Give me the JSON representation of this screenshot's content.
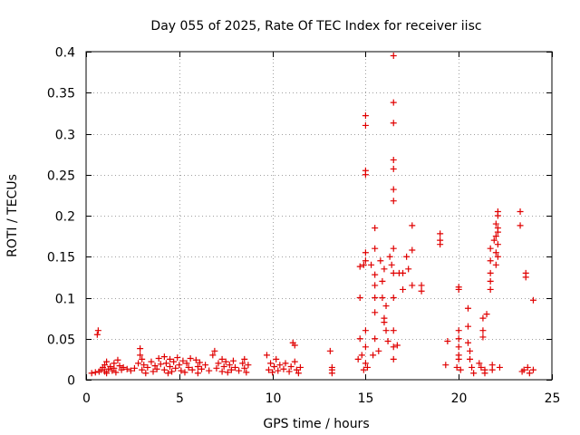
{
  "chart_data": {
    "type": "scatter",
    "title": "Day 055 of 2025, Rate Of TEC Index for receiver iisc",
    "xlabel": "GPS time / hours",
    "ylabel": "ROTI / TECUs",
    "xlim": [
      0,
      25
    ],
    "ylim": [
      0,
      0.4
    ],
    "xticks": [
      0,
      5,
      10,
      15,
      20,
      25
    ],
    "xtick_labels": [
      "0",
      "5",
      "10",
      "15",
      "20",
      "25"
    ],
    "yticks": [
      0,
      0.05,
      0.1,
      0.15,
      0.2,
      0.25,
      0.3,
      0.35,
      0.4
    ],
    "ytick_labels": [
      "0",
      "0.05",
      "0.1",
      "0.15",
      "0.2",
      "0.25",
      "0.3",
      "0.35",
      "0.4"
    ],
    "grid": true,
    "marker": "+",
    "color": "#e00000",
    "series": [
      {
        "name": "ROTI",
        "points": [
          [
            0.3,
            0.008
          ],
          [
            0.5,
            0.009
          ],
          [
            0.6,
            0.055
          ],
          [
            0.65,
            0.06
          ],
          [
            0.7,
            0.01
          ],
          [
            0.8,
            0.012
          ],
          [
            0.9,
            0.015
          ],
          [
            1.0,
            0.01
          ],
          [
            1.0,
            0.018
          ],
          [
            1.1,
            0.022
          ],
          [
            1.1,
            0.008
          ],
          [
            1.2,
            0.013
          ],
          [
            1.3,
            0.016
          ],
          [
            1.4,
            0.011
          ],
          [
            1.5,
            0.02
          ],
          [
            1.5,
            0.014
          ],
          [
            1.6,
            0.009
          ],
          [
            1.7,
            0.024
          ],
          [
            1.8,
            0.017
          ],
          [
            1.9,
            0.012
          ],
          [
            2.0,
            0.015
          ],
          [
            2.2,
            0.013
          ],
          [
            2.4,
            0.011
          ],
          [
            2.6,
            0.014
          ],
          [
            2.8,
            0.02
          ],
          [
            2.9,
            0.03
          ],
          [
            2.9,
            0.038
          ],
          [
            3.0,
            0.025
          ],
          [
            3.0,
            0.012
          ],
          [
            3.1,
            0.018
          ],
          [
            3.2,
            0.008
          ],
          [
            3.3,
            0.015
          ],
          [
            3.5,
            0.022
          ],
          [
            3.6,
            0.01
          ],
          [
            3.7,
            0.017
          ],
          [
            3.8,
            0.013
          ],
          [
            3.9,
            0.026
          ],
          [
            4.0,
            0.019
          ],
          [
            4.2,
            0.028
          ],
          [
            4.2,
            0.012
          ],
          [
            4.3,
            0.02
          ],
          [
            4.4,
            0.008
          ],
          [
            4.5,
            0.016
          ],
          [
            4.5,
            0.025
          ],
          [
            4.6,
            0.01
          ],
          [
            4.7,
            0.022
          ],
          [
            4.8,
            0.014
          ],
          [
            4.9,
            0.027
          ],
          [
            5.0,
            0.018
          ],
          [
            5.1,
            0.011
          ],
          [
            5.2,
            0.023
          ],
          [
            5.3,
            0.009
          ],
          [
            5.4,
            0.02
          ],
          [
            5.5,
            0.015
          ],
          [
            5.6,
            0.026
          ],
          [
            5.7,
            0.012
          ],
          [
            5.9,
            0.024
          ],
          [
            6.0,
            0.016
          ],
          [
            6.0,
            0.008
          ],
          [
            6.1,
            0.021
          ],
          [
            6.2,
            0.013
          ],
          [
            6.4,
            0.018
          ],
          [
            6.6,
            0.011
          ],
          [
            6.8,
            0.03
          ],
          [
            6.9,
            0.035
          ],
          [
            7.0,
            0.014
          ],
          [
            7.1,
            0.02
          ],
          [
            7.3,
            0.01
          ],
          [
            7.3,
            0.025
          ],
          [
            7.4,
            0.016
          ],
          [
            7.5,
            0.022
          ],
          [
            7.6,
            0.009
          ],
          [
            7.7,
            0.018
          ],
          [
            7.8,
            0.012
          ],
          [
            7.9,
            0.023
          ],
          [
            8.0,
            0.015
          ],
          [
            8.2,
            0.011
          ],
          [
            8.4,
            0.02
          ],
          [
            8.5,
            0.014
          ],
          [
            8.5,
            0.025
          ],
          [
            8.6,
            0.009
          ],
          [
            8.7,
            0.018
          ],
          [
            9.7,
            0.03
          ],
          [
            9.8,
            0.012
          ],
          [
            9.9,
            0.02
          ],
          [
            10.0,
            0.009
          ],
          [
            10.1,
            0.016
          ],
          [
            10.2,
            0.025
          ],
          [
            10.3,
            0.011
          ],
          [
            10.4,
            0.018
          ],
          [
            10.6,
            0.013
          ],
          [
            10.7,
            0.02
          ],
          [
            10.9,
            0.01
          ],
          [
            11.0,
            0.016
          ],
          [
            11.1,
            0.045
          ],
          [
            11.2,
            0.042
          ],
          [
            11.2,
            0.022
          ],
          [
            11.3,
            0.012
          ],
          [
            11.4,
            0.008
          ],
          [
            11.5,
            0.015
          ],
          [
            13.1,
            0.035
          ],
          [
            13.2,
            0.015
          ],
          [
            13.2,
            0.008
          ],
          [
            13.2,
            0.012
          ],
          [
            14.6,
            0.025
          ],
          [
            14.7,
            0.138
          ],
          [
            14.7,
            0.1
          ],
          [
            14.7,
            0.05
          ],
          [
            14.8,
            0.03
          ],
          [
            14.9,
            0.012
          ],
          [
            14.9,
            0.14
          ],
          [
            15.0,
            0.25
          ],
          [
            15.0,
            0.255
          ],
          [
            15.0,
            0.31
          ],
          [
            15.0,
            0.322
          ],
          [
            15.0,
            0.145
          ],
          [
            15.0,
            0.155
          ],
          [
            15.0,
            0.06
          ],
          [
            15.0,
            0.04
          ],
          [
            15.0,
            0.02
          ],
          [
            15.1,
            0.015
          ],
          [
            15.3,
            0.14
          ],
          [
            15.4,
            0.03
          ],
          [
            15.5,
            0.185
          ],
          [
            15.5,
            0.16
          ],
          [
            15.5,
            0.128
          ],
          [
            15.5,
            0.115
          ],
          [
            15.5,
            0.1
          ],
          [
            15.5,
            0.082
          ],
          [
            15.5,
            0.05
          ],
          [
            15.7,
            0.035
          ],
          [
            15.8,
            0.145
          ],
          [
            15.9,
            0.12
          ],
          [
            15.9,
            0.1
          ],
          [
            16.0,
            0.135
          ],
          [
            16.0,
            0.075
          ],
          [
            16.0,
            0.07
          ],
          [
            16.1,
            0.09
          ],
          [
            16.1,
            0.06
          ],
          [
            16.2,
            0.047
          ],
          [
            16.3,
            0.15
          ],
          [
            16.4,
            0.14
          ],
          [
            16.5,
            0.395
          ],
          [
            16.5,
            0.338
          ],
          [
            16.5,
            0.313
          ],
          [
            16.5,
            0.268
          ],
          [
            16.5,
            0.257
          ],
          [
            16.5,
            0.232
          ],
          [
            16.5,
            0.218
          ],
          [
            16.5,
            0.16
          ],
          [
            16.5,
            0.13
          ],
          [
            16.5,
            0.1
          ],
          [
            16.5,
            0.06
          ],
          [
            16.5,
            0.04
          ],
          [
            16.5,
            0.025
          ],
          [
            16.7,
            0.042
          ],
          [
            16.8,
            0.13
          ],
          [
            17.0,
            0.13
          ],
          [
            17.0,
            0.11
          ],
          [
            17.2,
            0.15
          ],
          [
            17.3,
            0.135
          ],
          [
            17.5,
            0.188
          ],
          [
            17.5,
            0.158
          ],
          [
            17.5,
            0.115
          ],
          [
            18.0,
            0.108
          ],
          [
            18.0,
            0.115
          ],
          [
            19.0,
            0.178
          ],
          [
            19.0,
            0.165
          ],
          [
            19.0,
            0.17
          ],
          [
            19.3,
            0.018
          ],
          [
            19.4,
            0.047
          ],
          [
            19.9,
            0.015
          ],
          [
            20.0,
            0.11
          ],
          [
            20.0,
            0.113
          ],
          [
            20.0,
            0.06
          ],
          [
            20.0,
            0.05
          ],
          [
            20.0,
            0.04
          ],
          [
            20.0,
            0.03
          ],
          [
            20.0,
            0.025
          ],
          [
            20.1,
            0.012
          ],
          [
            20.5,
            0.087
          ],
          [
            20.5,
            0.065
          ],
          [
            20.5,
            0.045
          ],
          [
            20.6,
            0.035
          ],
          [
            20.6,
            0.025
          ],
          [
            20.7,
            0.015
          ],
          [
            20.8,
            0.008
          ],
          [
            21.1,
            0.02
          ],
          [
            21.2,
            0.015
          ],
          [
            21.3,
            0.075
          ],
          [
            21.3,
            0.06
          ],
          [
            21.3,
            0.052
          ],
          [
            21.4,
            0.012
          ],
          [
            21.4,
            0.008
          ],
          [
            21.5,
            0.08
          ],
          [
            21.7,
            0.16
          ],
          [
            21.7,
            0.145
          ],
          [
            21.7,
            0.13
          ],
          [
            21.7,
            0.12
          ],
          [
            21.7,
            0.11
          ],
          [
            21.8,
            0.018
          ],
          [
            21.8,
            0.012
          ],
          [
            21.9,
            0.17
          ],
          [
            22.0,
            0.19
          ],
          [
            22.0,
            0.175
          ],
          [
            22.0,
            0.155
          ],
          [
            22.0,
            0.14
          ],
          [
            22.1,
            0.205
          ],
          [
            22.1,
            0.2
          ],
          [
            22.1,
            0.185
          ],
          [
            22.1,
            0.18
          ],
          [
            22.1,
            0.165
          ],
          [
            22.1,
            0.15
          ],
          [
            22.2,
            0.015
          ],
          [
            23.3,
            0.205
          ],
          [
            23.3,
            0.188
          ],
          [
            23.4,
            0.01
          ],
          [
            23.5,
            0.012
          ],
          [
            23.6,
            0.13
          ],
          [
            23.6,
            0.125
          ],
          [
            23.7,
            0.015
          ],
          [
            23.8,
            0.008
          ],
          [
            24.0,
            0.097
          ],
          [
            24.0,
            0.012
          ]
        ]
      }
    ]
  }
}
